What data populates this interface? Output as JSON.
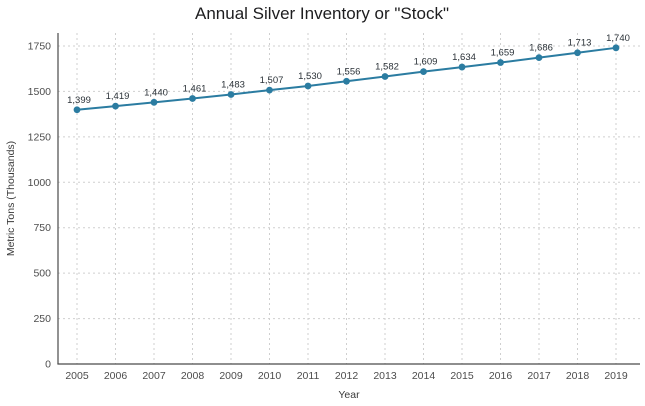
{
  "chart_data": {
    "type": "line",
    "title": "Annual Silver Inventory or \"Stock\"",
    "xlabel": "Year",
    "ylabel": "Metric Tons (Thousands)",
    "categories": [
      "2005",
      "2006",
      "2007",
      "2008",
      "2009",
      "2010",
      "2011",
      "2012",
      "2013",
      "2014",
      "2015",
      "2016",
      "2017",
      "2018",
      "2019"
    ],
    "values": [
      1399,
      1419,
      1440,
      1461,
      1483,
      1507,
      1530,
      1556,
      1582,
      1609,
      1634,
      1659,
      1686,
      1713,
      1740
    ],
    "point_labels": [
      "1,399",
      "1,419",
      "1,440",
      "1,461",
      "1,483",
      "1,507",
      "1,530",
      "1,556",
      "1,582",
      "1,609",
      "1,634",
      "1,659",
      "1,686",
      "1,713",
      "1,740"
    ],
    "ylim": [
      0,
      1750
    ],
    "yticks": [
      0,
      250,
      500,
      750,
      1000,
      1250,
      1500,
      1750
    ],
    "grid": "dashed",
    "legend_position": "none",
    "colors": {
      "line": "#2b7ca1",
      "marker": "#2b7ca1",
      "grid": "#cfcfcf",
      "axis": "#4a4a4a",
      "tick_label": "#4d4d4d",
      "axis_title": "#3a3a3a",
      "point_label": "#2b3238",
      "title": "#1d1d1f",
      "background": "#ffffff"
    }
  }
}
